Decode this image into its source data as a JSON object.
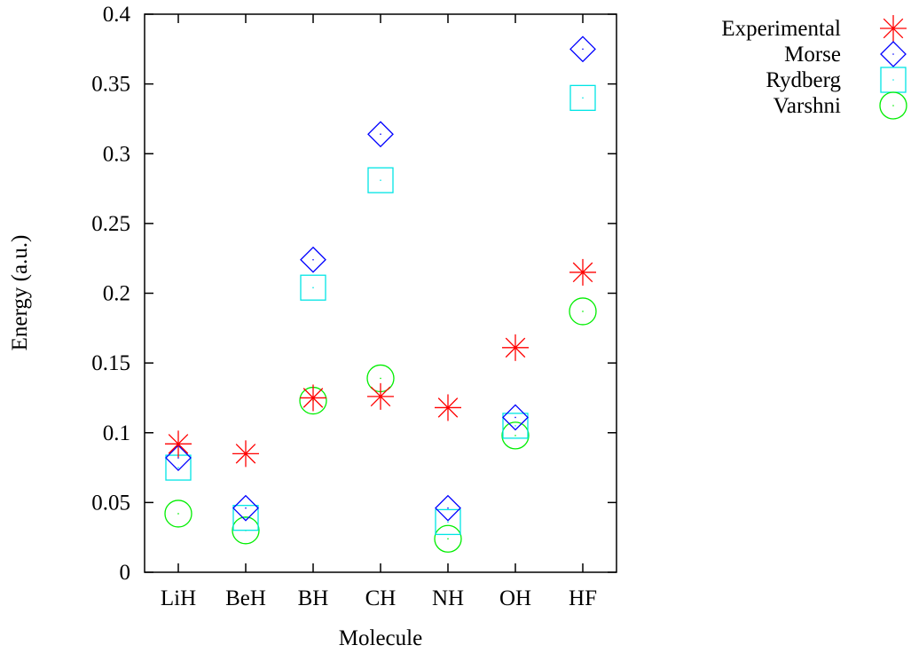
{
  "chart_data": {
    "type": "scatter",
    "title": "",
    "xlabel": "Molecule",
    "ylabel": "Energy (a.u.)",
    "categories": [
      "LiH",
      "BeH",
      "BH",
      "CH",
      "NH",
      "OH",
      "HF"
    ],
    "ylim": [
      0,
      0.4
    ],
    "yticks": [
      "0",
      "0.05",
      "0.1",
      "0.15",
      "0.2",
      "0.25",
      "0.3",
      "0.35",
      "0.4"
    ],
    "grid": false,
    "legend_position": "outside-top-right",
    "series": [
      {
        "name": "Experimental",
        "marker": "asterisk",
        "color": "#ff0000",
        "values": [
          0.092,
          0.085,
          0.125,
          0.126,
          0.118,
          0.161,
          0.215
        ]
      },
      {
        "name": "Morse",
        "marker": "diamond",
        "color": "#0000ff",
        "values": [
          0.082,
          0.046,
          0.224,
          0.314,
          0.046,
          0.111,
          0.375
        ]
      },
      {
        "name": "Rydberg",
        "marker": "square",
        "color": "#00e5e5",
        "values": [
          0.075,
          0.039,
          0.204,
          0.281,
          0.036,
          0.105,
          0.34
        ]
      },
      {
        "name": "Varshni",
        "marker": "circle",
        "color": "#00ee00",
        "values": [
          0.042,
          0.03,
          0.123,
          0.139,
          0.024,
          0.098,
          0.187
        ]
      }
    ]
  }
}
